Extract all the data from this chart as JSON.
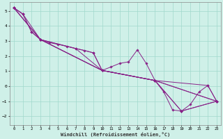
{
  "bg_color": "#cff0e8",
  "grid_color": "#a0d8cc",
  "line_color": "#882288",
  "xlim": [
    0,
    23
  ],
  "ylim": [
    -2.6,
    5.6
  ],
  "xticks": [
    0,
    1,
    2,
    3,
    4,
    5,
    6,
    7,
    8,
    9,
    10,
    11,
    12,
    13,
    14,
    15,
    16,
    17,
    18,
    19,
    20,
    21,
    22,
    23
  ],
  "yticks": [
    -2,
    -1,
    0,
    1,
    2,
    3,
    4,
    5
  ],
  "xlabel": "Windchill (Refroidissement éolien,°C)",
  "series": [
    {
      "x": [
        0,
        1,
        2,
        3,
        4,
        5,
        6,
        7,
        8,
        9,
        10,
        11,
        12,
        13,
        14,
        15,
        16,
        17,
        18,
        19,
        20,
        21,
        22,
        23
      ],
      "y": [
        5.2,
        4.8,
        3.6,
        3.1,
        2.9,
        2.78,
        2.65,
        2.5,
        2.38,
        2.22,
        1.05,
        1.28,
        1.52,
        1.62,
        2.42,
        1.52,
        0.38,
        -0.38,
        -1.58,
        -1.65,
        -1.22,
        -0.38,
        0.05,
        -1.0
      ]
    },
    {
      "x": [
        0,
        1,
        2,
        3,
        9,
        10,
        16,
        22,
        23
      ],
      "y": [
        5.2,
        4.8,
        3.6,
        3.1,
        2.22,
        1.05,
        0.38,
        0.05,
        -1.0
      ]
    },
    {
      "x": [
        0,
        1,
        3,
        10,
        16,
        23
      ],
      "y": [
        5.2,
        4.8,
        3.1,
        1.05,
        0.38,
        -1.0
      ]
    },
    {
      "x": [
        0,
        3,
        10,
        16,
        23
      ],
      "y": [
        5.2,
        3.1,
        1.05,
        0.38,
        -1.0
      ]
    },
    {
      "x": [
        0,
        3,
        10,
        16,
        19,
        23
      ],
      "y": [
        5.2,
        3.1,
        1.05,
        0.38,
        -1.65,
        -1.0
      ]
    },
    {
      "x": [
        0,
        3,
        7,
        10,
        16,
        19,
        23
      ],
      "y": [
        5.2,
        3.1,
        2.5,
        1.05,
        0.38,
        -1.65,
        -1.0
      ]
    }
  ]
}
